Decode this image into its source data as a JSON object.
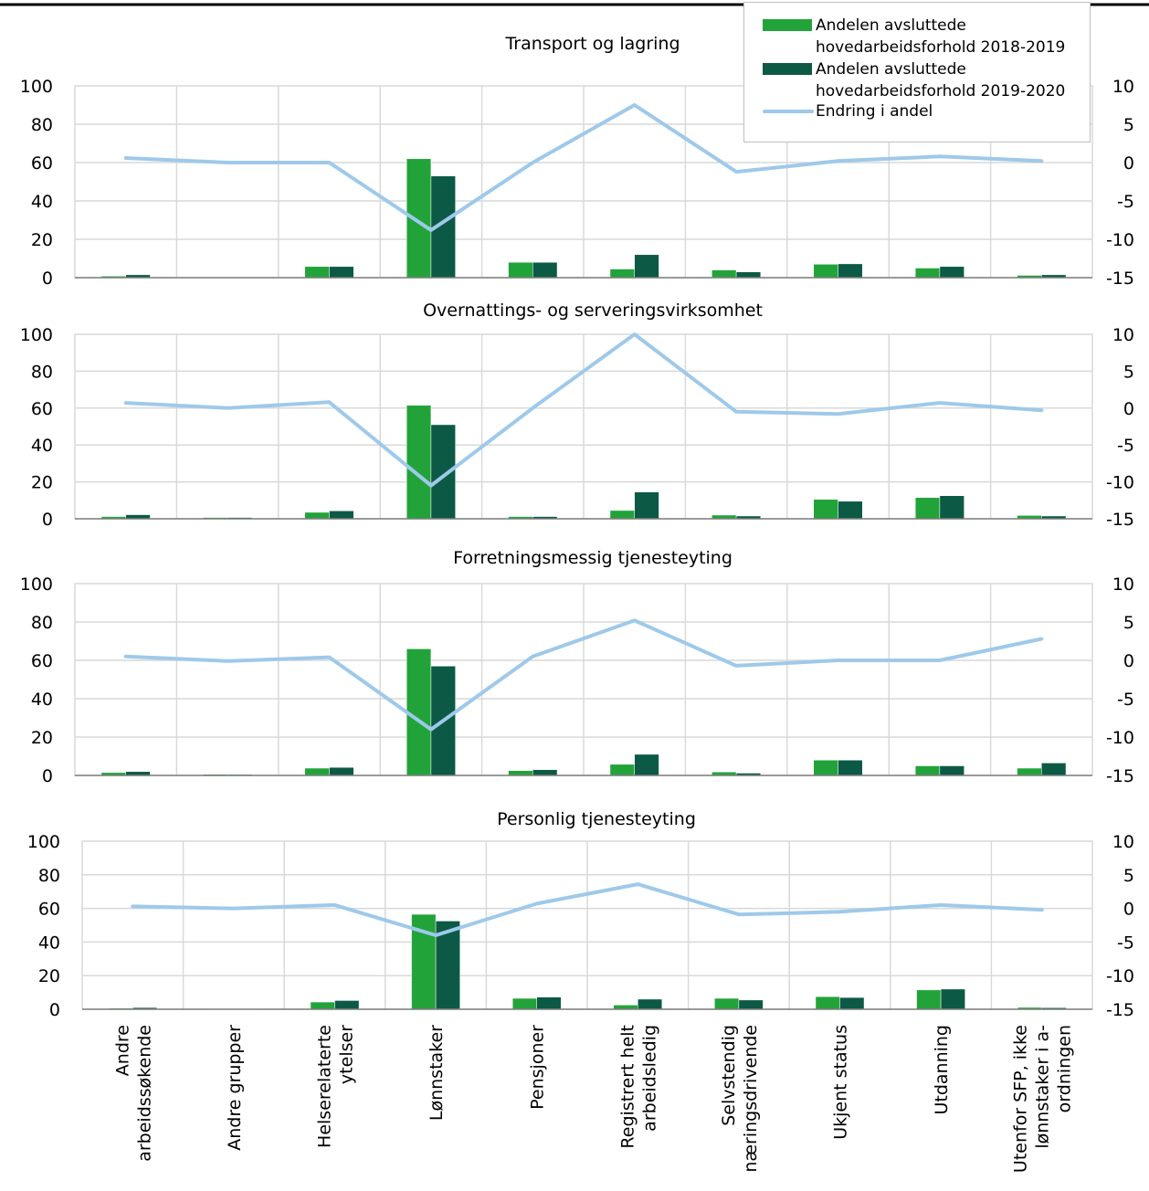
{
  "colors": {
    "bar_2018_2019": "#22a33a",
    "bar_2019_2020": "#0c5a45",
    "line_change": "#9ec9ea",
    "grid": "#d9d9d9",
    "axis": "#7f7f7f"
  },
  "legend": {
    "items": [
      {
        "key": "bar_2018_2019",
        "label_line1": "Andelen avsluttede",
        "label_line2": "hovedarbeidsforhold 2018-2019",
        "kind": "bar"
      },
      {
        "key": "bar_2019_2020",
        "label_line1": "Andelen avsluttede",
        "label_line2": "hovedarbeidsforhold 2019-2020",
        "kind": "bar"
      },
      {
        "key": "line_change",
        "label_line1": "Endring i andel",
        "label_line2": "",
        "kind": "line"
      }
    ]
  },
  "chart_data": [
    {
      "type": "bar",
      "title": "Transport og lagring",
      "categories": [
        "Andre arbeidssøkende",
        "Andre grupper",
        "Helserelaterte ytelser",
        "Lønnstaker",
        "Pensjoner",
        "Registrert helt arbeidsledig",
        "Selvstendig næringsdrivende",
        "Ukjent status",
        "Utdanning",
        "Utenfor SFP, ikke lønnstaker i a-ordningen"
      ],
      "series": [
        {
          "name": "Andelen avsluttede hovedarbeidsforhold 2018-2019",
          "axis": "left",
          "values": [
            0.8,
            0.3,
            5.8,
            62,
            8,
            4.5,
            4,
            7,
            5,
            1.2
          ]
        },
        {
          "name": "Andelen avsluttede hovedarbeidsforhold 2019-2020",
          "axis": "left",
          "values": [
            1.5,
            0.3,
            5.8,
            53,
            8,
            12,
            3,
            7.2,
            5.8,
            1.5
          ]
        },
        {
          "name": "Endring i andel",
          "axis": "right",
          "type": "line",
          "values": [
            0.6,
            0,
            0,
            -8.8,
            0,
            7.5,
            -1.2,
            0.2,
            0.8,
            0.2
          ]
        }
      ],
      "ylim": [
        0,
        100
      ],
      "y2lim": [
        -15,
        10
      ],
      "yticks": [
        "0",
        "20",
        "40",
        "60",
        "80",
        "100"
      ],
      "y2ticks": [
        "-15",
        "-10",
        "-5",
        "0",
        "5",
        "10"
      ]
    },
    {
      "type": "bar",
      "title": "Overnattings- og serveringsvirksomhet",
      "categories": [
        "Andre arbeidssøkende",
        "Andre grupper",
        "Helserelaterte ytelser",
        "Lønnstaker",
        "Pensjoner",
        "Registrert helt arbeidsledig",
        "Selvstendig næringsdrivende",
        "Ukjent status",
        "Utdanning",
        "Utenfor SFP, ikke lønnstaker i a-ordningen"
      ],
      "series": [
        {
          "name": "Andelen avsluttede hovedarbeidsforhold 2018-2019",
          "axis": "left",
          "values": [
            1.2,
            0.7,
            3.5,
            61.5,
            1.2,
            4.5,
            2,
            10.5,
            11.5,
            1.8
          ]
        },
        {
          "name": "Andelen avsluttede hovedarbeidsforhold 2019-2020",
          "axis": "left",
          "values": [
            2.2,
            0.7,
            4.3,
            51,
            1.2,
            14.5,
            1.5,
            9.5,
            12.5,
            1.5
          ]
        },
        {
          "name": "Endring i andel",
          "axis": "right",
          "type": "line",
          "values": [
            0.7,
            0,
            0.8,
            -10.5,
            0,
            10,
            -0.5,
            -0.8,
            0.7,
            -0.3
          ]
        }
      ],
      "ylim": [
        0,
        100
      ],
      "y2lim": [
        -15,
        10
      ],
      "yticks": [
        "0",
        "20",
        "40",
        "60",
        "80",
        "100"
      ],
      "y2ticks": [
        "-15",
        "-10",
        "-5",
        "0",
        "5",
        "10"
      ]
    },
    {
      "type": "bar",
      "title": "Forretningsmessig tjenesteyting",
      "categories": [
        "Andre arbeidssøkende",
        "Andre grupper",
        "Helserelaterte ytelser",
        "Lønnstaker",
        "Pensjoner",
        "Registrert helt arbeidsledig",
        "Selvstendig næringsdrivende",
        "Ukjent status",
        "Utdanning",
        "Utenfor SFP, ikke lønnstaker i a-ordningen"
      ],
      "series": [
        {
          "name": "Andelen avsluttede hovedarbeidsforhold 2018-2019",
          "axis": "left",
          "values": [
            1.5,
            0.6,
            3.8,
            66,
            2.5,
            5.8,
            1.8,
            8,
            5,
            3.8
          ]
        },
        {
          "name": "Andelen avsluttede hovedarbeidsforhold 2019-2020",
          "axis": "left",
          "values": [
            2,
            0.5,
            4.2,
            57,
            3,
            11,
            1.2,
            8,
            5,
            6.5
          ]
        },
        {
          "name": "Endring i andel",
          "axis": "right",
          "type": "line",
          "values": [
            0.5,
            -0.1,
            0.4,
            -9,
            0.5,
            5.2,
            -0.7,
            0,
            0,
            2.8
          ]
        }
      ],
      "ylim": [
        0,
        100
      ],
      "y2lim": [
        -15,
        10
      ],
      "yticks": [
        "0",
        "20",
        "40",
        "60",
        "80",
        "100"
      ],
      "y2ticks": [
        "-15",
        "-10",
        "-5",
        "0",
        "5",
        "10"
      ]
    },
    {
      "type": "bar",
      "title": "Personlig tjenesteyting",
      "categories": [
        "Andre arbeidssøkende",
        "Andre grupper",
        "Helserelaterte ytelser",
        "Lønnstaker",
        "Pensjoner",
        "Registrert helt arbeidsledig",
        "Selvstendig næringsdrivende",
        "Ukjent status",
        "Utdanning",
        "Utenfor SFP, ikke lønnstaker i a-ordningen"
      ],
      "series": [
        {
          "name": "Andelen avsluttede hovedarbeidsforhold 2018-2019",
          "axis": "left",
          "values": [
            0.6,
            0.4,
            4.3,
            56.5,
            6.5,
            2.5,
            6.5,
            7.5,
            11.5,
            1.1
          ]
        },
        {
          "name": "Andelen avsluttede hovedarbeidsforhold 2019-2020",
          "axis": "left",
          "values": [
            1,
            0.4,
            5.2,
            52.5,
            7.2,
            6,
            5.5,
            7,
            12,
            0.9
          ]
        },
        {
          "name": "Endring i andel",
          "axis": "right",
          "type": "line",
          "values": [
            0.3,
            0,
            0.5,
            -4,
            0.7,
            3.6,
            -0.9,
            -0.5,
            0.5,
            -0.2
          ]
        }
      ],
      "ylim": [
        0,
        100
      ],
      "y2lim": [
        -15,
        10
      ],
      "yticks": [
        "0",
        "20",
        "40",
        "60",
        "80",
        "100"
      ],
      "y2ticks": [
        "-15",
        "-10",
        "-5",
        "0",
        "5",
        "10"
      ]
    }
  ],
  "category_label_lines": [
    [
      "Andre",
      "arbeidssøkende"
    ],
    [
      "Andre grupper"
    ],
    [
      "Helserelaterte",
      "ytelser"
    ],
    [
      "Lønnstaker"
    ],
    [
      "Pensjoner"
    ],
    [
      "Registrert helt",
      "arbeidsledig"
    ],
    [
      "Selvstendig",
      "næringsdrivende"
    ],
    [
      "Ukjent status"
    ],
    [
      "Utdanning"
    ],
    [
      "Utenfor SFP, ikke",
      "lønnstaker i a-",
      "ordningen"
    ]
  ]
}
